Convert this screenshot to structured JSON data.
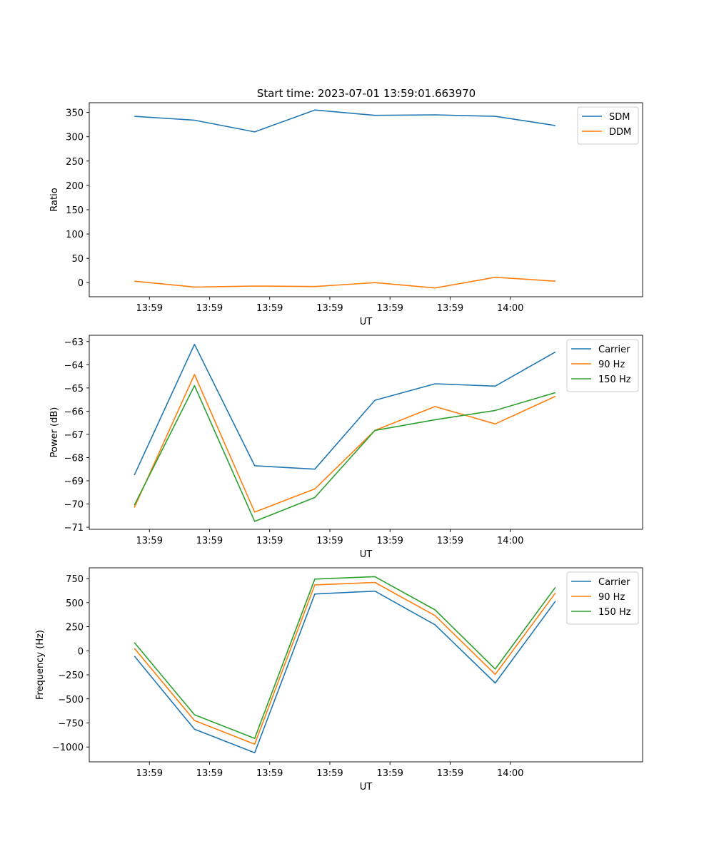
{
  "figure_title": "Start time: 2023-07-01 13:59:01.663970",
  "chart_data": [
    {
      "type": "line",
      "title": "Start time: 2023-07-01 13:59:01.663970",
      "xlabel": "UT",
      "ylabel": "Ratio",
      "xticks": [
        "13:59",
        "13:59",
        "13:59",
        "13:59",
        "13:59",
        "13:59",
        "14:00"
      ],
      "xlim": [
        0,
        9.2
      ],
      "ylim": [
        -29,
        370
      ],
      "yticks": [
        0,
        50,
        100,
        150,
        200,
        250,
        300,
        350
      ],
      "ytick_labels": [
        "0",
        "50",
        "100",
        "150",
        "200",
        "250",
        "300",
        "350"
      ],
      "legend_position": "top-right",
      "x": [
        0.75,
        1.75,
        2.75,
        3.75,
        4.75,
        5.75,
        6.75,
        7.75
      ],
      "series": [
        {
          "name": "SDM",
          "color": "#1f77b4",
          "values": [
            342,
            334,
            310,
            355,
            344,
            345,
            342,
            323
          ]
        },
        {
          "name": "DDM",
          "color": "#ff7f0e",
          "values": [
            3,
            -9,
            -7,
            -8,
            0,
            -11,
            11,
            3
          ]
        }
      ]
    },
    {
      "type": "line",
      "title": "",
      "xlabel": "UT",
      "ylabel": "Power (dB)",
      "xticks": [
        "13:59",
        "13:59",
        "13:59",
        "13:59",
        "13:59",
        "13:59",
        "14:00"
      ],
      "xlim": [
        0,
        9.2
      ],
      "ylim": [
        -71.09,
        -62.73
      ],
      "yticks": [
        -71,
        -70,
        -69,
        -68,
        -67,
        -66,
        -65,
        -64,
        -63
      ],
      "ytick_labels": [
        "−71",
        "−70",
        "−69",
        "−68",
        "−67",
        "−66",
        "−65",
        "−64",
        "−63"
      ],
      "legend_position": "top-right",
      "x": [
        0.75,
        1.75,
        2.75,
        3.75,
        4.75,
        5.75,
        6.75,
        7.75
      ],
      "series": [
        {
          "name": "Carrier",
          "color": "#1f77b4",
          "values": [
            -68.75,
            -63.12,
            -68.35,
            -68.5,
            -65.53,
            -64.82,
            -64.92,
            -63.45
          ]
        },
        {
          "name": "90 Hz",
          "color": "#ff7f0e",
          "values": [
            -70.15,
            -64.42,
            -70.35,
            -69.35,
            -66.83,
            -65.8,
            -66.55,
            -65.36
          ]
        },
        {
          "name": "150 Hz",
          "color": "#2ca02c",
          "values": [
            -70.05,
            -64.9,
            -70.75,
            -69.72,
            -66.83,
            -66.37,
            -65.97,
            -65.2
          ]
        }
      ]
    },
    {
      "type": "line",
      "title": "",
      "xlabel": "UT",
      "ylabel": "Frequency (Hz)",
      "xticks": [
        "13:59",
        "13:59",
        "13:59",
        "13:59",
        "13:59",
        "13:59",
        "14:00"
      ],
      "xlim": [
        0,
        9.2
      ],
      "ylim": [
        -1154,
        862
      ],
      "yticks": [
        -1000,
        -750,
        -500,
        -250,
        0,
        250,
        500,
        750
      ],
      "ytick_labels": [
        "−1000",
        "−750",
        "−500",
        "−250",
        "0",
        "250",
        "500",
        "750"
      ],
      "legend_position": "top-right",
      "x": [
        0.75,
        1.75,
        2.75,
        3.75,
        4.75,
        5.75,
        6.75,
        7.75
      ],
      "series": [
        {
          "name": "Carrier",
          "color": "#1f77b4",
          "values": [
            -55,
            -815,
            -1060,
            590,
            620,
            270,
            -335,
            515
          ]
        },
        {
          "name": "90 Hz",
          "color": "#ff7f0e",
          "values": [
            25,
            -725,
            -970,
            685,
            710,
            365,
            -245,
            600
          ]
        },
        {
          "name": "150 Hz",
          "color": "#2ca02c",
          "values": [
            85,
            -665,
            -910,
            745,
            770,
            425,
            -190,
            660
          ]
        }
      ]
    }
  ]
}
